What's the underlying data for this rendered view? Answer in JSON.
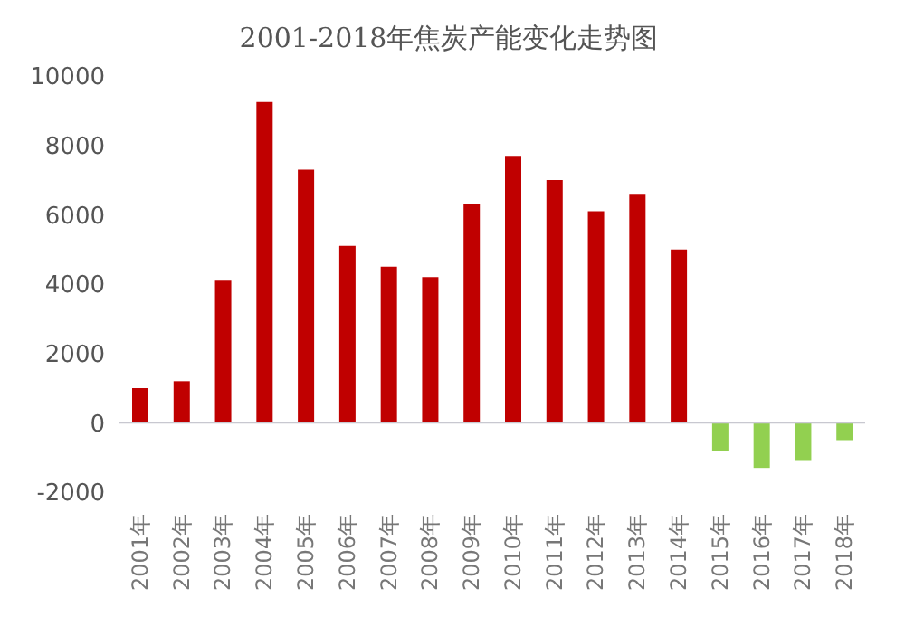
{
  "chart_data": {
    "type": "bar",
    "title": "2001-2018年焦炭产能变化走势图",
    "categories": [
      "2001年",
      "2002年",
      "2003年",
      "2004年",
      "2005年",
      "2006年",
      "2007年",
      "2008年",
      "2009年",
      "2010年",
      "2011年",
      "2012年",
      "2013年",
      "2014年",
      "2015年",
      "2016年",
      "2017年",
      "2018年"
    ],
    "values": [
      1000,
      1200,
      4100,
      9250,
      7300,
      5100,
      4500,
      4200,
      6300,
      7700,
      7000,
      6100,
      6600,
      5000,
      -800,
      -1300,
      -1100,
      -500
    ],
    "colors": [
      "#c00000",
      "#c00000",
      "#c00000",
      "#c00000",
      "#c00000",
      "#c00000",
      "#c00000",
      "#c00000",
      "#c00000",
      "#c00000",
      "#c00000",
      "#c00000",
      "#c00000",
      "#c00000",
      "#92d050",
      "#92d050",
      "#92d050",
      "#92d050"
    ],
    "ylim": [
      -2000,
      10000
    ],
    "yticks": [
      -2000,
      0,
      2000,
      4000,
      6000,
      8000,
      10000
    ]
  }
}
